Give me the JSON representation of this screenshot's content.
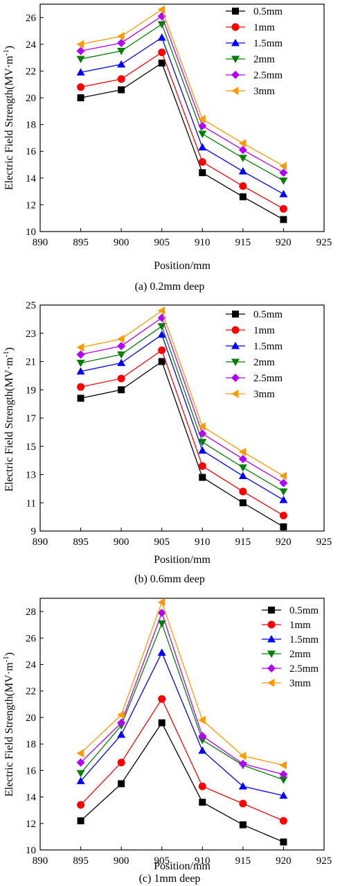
{
  "chart_data": [
    {
      "type": "line",
      "caption": "(a) 0.2mm deep",
      "xlabel": "Position/mm",
      "ylabel": "Electric Field Strength(MV·m",
      "ylabel_sup": "-1",
      "ylabel_close": ")",
      "xlim": [
        890,
        925
      ],
      "ylim": [
        10,
        27
      ],
      "xticks": [
        890,
        895,
        900,
        905,
        910,
        915,
        920,
        925
      ],
      "yticks": [
        10,
        12,
        14,
        16,
        18,
        20,
        22,
        24,
        26
      ],
      "x": [
        895,
        900,
        905,
        910,
        915,
        920
      ],
      "legend_position": "top-right",
      "grid": false,
      "series": [
        {
          "name": "0.5mm",
          "marker": "square",
          "color": "#000000",
          "values": [
            20.0,
            20.6,
            22.6,
            14.4,
            12.6,
            10.9
          ]
        },
        {
          "name": "1mm",
          "marker": "circle",
          "color": "#ff0000",
          "values": [
            20.8,
            21.4,
            23.4,
            15.2,
            13.4,
            11.7
          ]
        },
        {
          "name": "1.5mm",
          "marker": "triangle-up",
          "color": "#0000ff",
          "values": [
            21.9,
            22.5,
            24.5,
            16.3,
            14.5,
            12.8
          ]
        },
        {
          "name": "2mm",
          "marker": "triangle-down",
          "color": "#008000",
          "values": [
            22.9,
            23.5,
            25.5,
            17.3,
            15.5,
            13.8
          ]
        },
        {
          "name": "2.5mm",
          "marker": "diamond",
          "color": "#b400ff",
          "values": [
            23.5,
            24.1,
            26.1,
            17.9,
            16.1,
            14.4
          ]
        },
        {
          "name": "3mm",
          "marker": "triangle-left",
          "color": "#ff9900",
          "values": [
            24.0,
            24.6,
            26.6,
            18.4,
            16.6,
            14.9
          ]
        }
      ]
    },
    {
      "type": "line",
      "caption": "(b) 0.6mm deep",
      "xlabel": "Position/mm",
      "ylabel": "Electric Field Strength(MV·m",
      "ylabel_sup": "-1",
      "ylabel_close": ")",
      "xlim": [
        890,
        925
      ],
      "ylim": [
        9,
        25
      ],
      "xticks": [
        890,
        895,
        900,
        905,
        910,
        915,
        920,
        925
      ],
      "yticks": [
        9,
        11,
        13,
        15,
        17,
        19,
        21,
        23,
        25
      ],
      "x": [
        895,
        900,
        905,
        910,
        915,
        920
      ],
      "legend_position": "top-right",
      "grid": false,
      "series": [
        {
          "name": "0.5mm",
          "marker": "square",
          "color": "#000000",
          "values": [
            18.4,
            19.0,
            21.0,
            12.8,
            11.0,
            9.3
          ]
        },
        {
          "name": "1mm",
          "marker": "circle",
          "color": "#ff0000",
          "values": [
            19.2,
            19.8,
            21.8,
            13.6,
            11.8,
            10.1
          ]
        },
        {
          "name": "1.5mm",
          "marker": "triangle-up",
          "color": "#0000ff",
          "values": [
            20.3,
            20.9,
            22.9,
            14.7,
            12.9,
            11.2
          ]
        },
        {
          "name": "2mm",
          "marker": "triangle-down",
          "color": "#008000",
          "values": [
            20.9,
            21.5,
            23.5,
            15.3,
            13.5,
            11.8
          ]
        },
        {
          "name": "2.5mm",
          "marker": "diamond",
          "color": "#b400ff",
          "values": [
            21.5,
            22.1,
            24.1,
            15.9,
            14.1,
            12.4
          ]
        },
        {
          "name": "3mm",
          "marker": "triangle-left",
          "color": "#ff9900",
          "values": [
            22.0,
            22.6,
            24.6,
            16.4,
            14.6,
            12.9
          ]
        }
      ]
    },
    {
      "type": "line",
      "caption": "(c) 1mm deep",
      "xlabel": "Position/mm",
      "ylabel": "Electric Field Strength(MV·m",
      "ylabel_sup": "-1",
      "ylabel_close": ")",
      "xlim": [
        890,
        925
      ],
      "ylim": [
        10,
        29
      ],
      "xticks": [
        890,
        895,
        900,
        905,
        910,
        915,
        920,
        925
      ],
      "yticks": [
        10,
        12,
        14,
        16,
        18,
        20,
        22,
        24,
        26,
        28
      ],
      "x": [
        895,
        900,
        905,
        910,
        915,
        920
      ],
      "legend_position": "top-right",
      "grid": false,
      "series": [
        {
          "name": "0.5mm",
          "marker": "square",
          "color": "#000000",
          "values": [
            12.2,
            15.0,
            19.6,
            13.6,
            11.9,
            10.6
          ]
        },
        {
          "name": "1mm",
          "marker": "circle",
          "color": "#ff0000",
          "values": [
            13.4,
            16.6,
            21.4,
            14.8,
            13.5,
            12.2
          ]
        },
        {
          "name": "1.5mm",
          "marker": "triangle-up",
          "color": "#0000ff",
          "values": [
            15.2,
            18.7,
            24.9,
            17.5,
            14.8,
            14.1
          ]
        },
        {
          "name": "2mm",
          "marker": "triangle-down",
          "color": "#008000",
          "values": [
            15.8,
            19.4,
            27.1,
            18.3,
            16.4,
            15.3
          ]
        },
        {
          "name": "2.5mm",
          "marker": "diamond",
          "color": "#b400ff",
          "values": [
            16.6,
            19.6,
            27.9,
            18.6,
            16.5,
            15.7
          ]
        },
        {
          "name": "3mm",
          "marker": "triangle-left",
          "color": "#ff9900",
          "values": [
            17.3,
            20.2,
            28.7,
            19.8,
            17.1,
            16.4
          ]
        }
      ]
    }
  ]
}
